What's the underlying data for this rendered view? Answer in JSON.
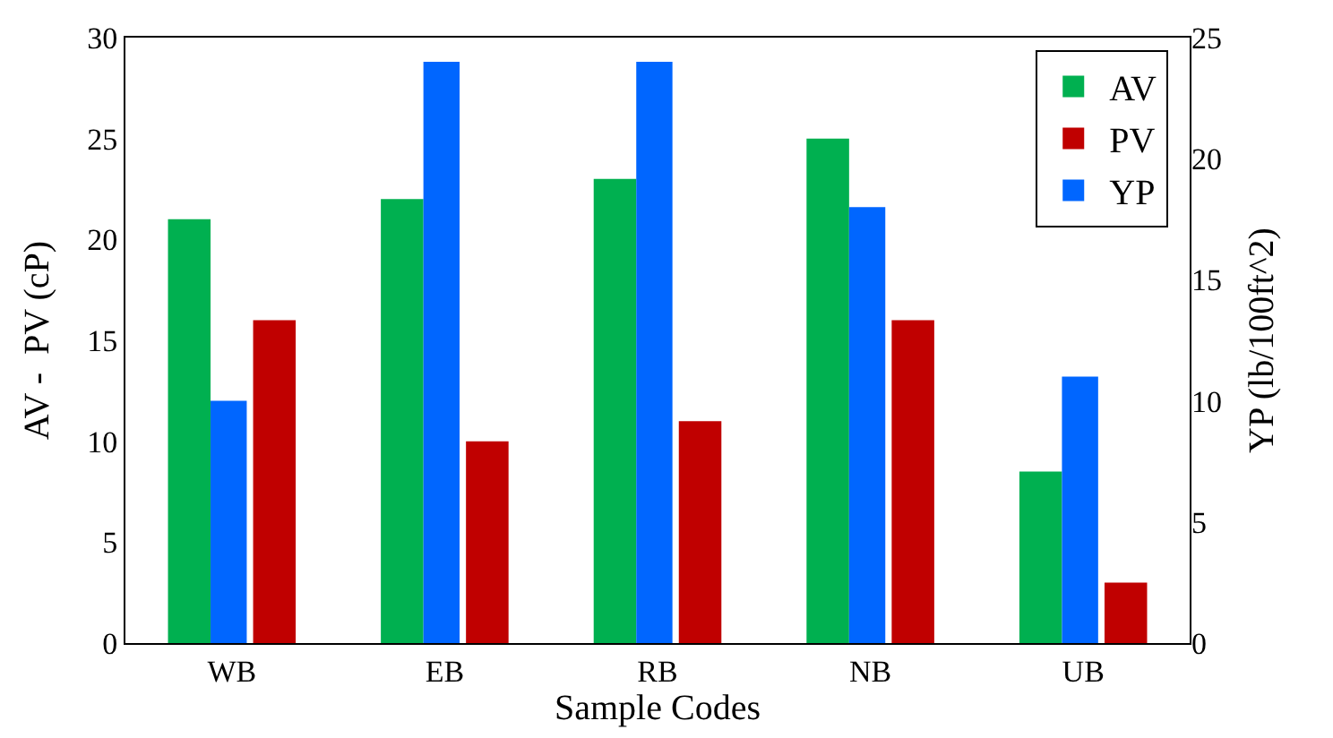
{
  "chart_data": {
    "type": "bar",
    "xlabel": "Sample Codes",
    "ylabel": "AV -  PV (cP)",
    "y2label": "YP (lb/100ft^2)",
    "categories": [
      "WB",
      "EB",
      "RB",
      "NB",
      "UB"
    ],
    "series": [
      {
        "name": "AV",
        "color": "#00b050",
        "values": [
          21,
          22,
          23,
          25,
          8.5
        ]
      },
      {
        "name": "PV",
        "color": "#c00000",
        "values": [
          16,
          10,
          11,
          16,
          3
        ]
      },
      {
        "name": "YP",
        "color": "#0066ff",
        "axis": "y2",
        "values": [
          10,
          24,
          24,
          18,
          11
        ]
      }
    ],
    "ylim": [
      0,
      30
    ],
    "yticks": [
      0,
      5,
      10,
      15,
      20,
      25,
      30
    ],
    "y2lim": [
      0,
      25
    ],
    "y2ticks": [
      0,
      5,
      10,
      15,
      20,
      25
    ],
    "legend": "top right"
  }
}
